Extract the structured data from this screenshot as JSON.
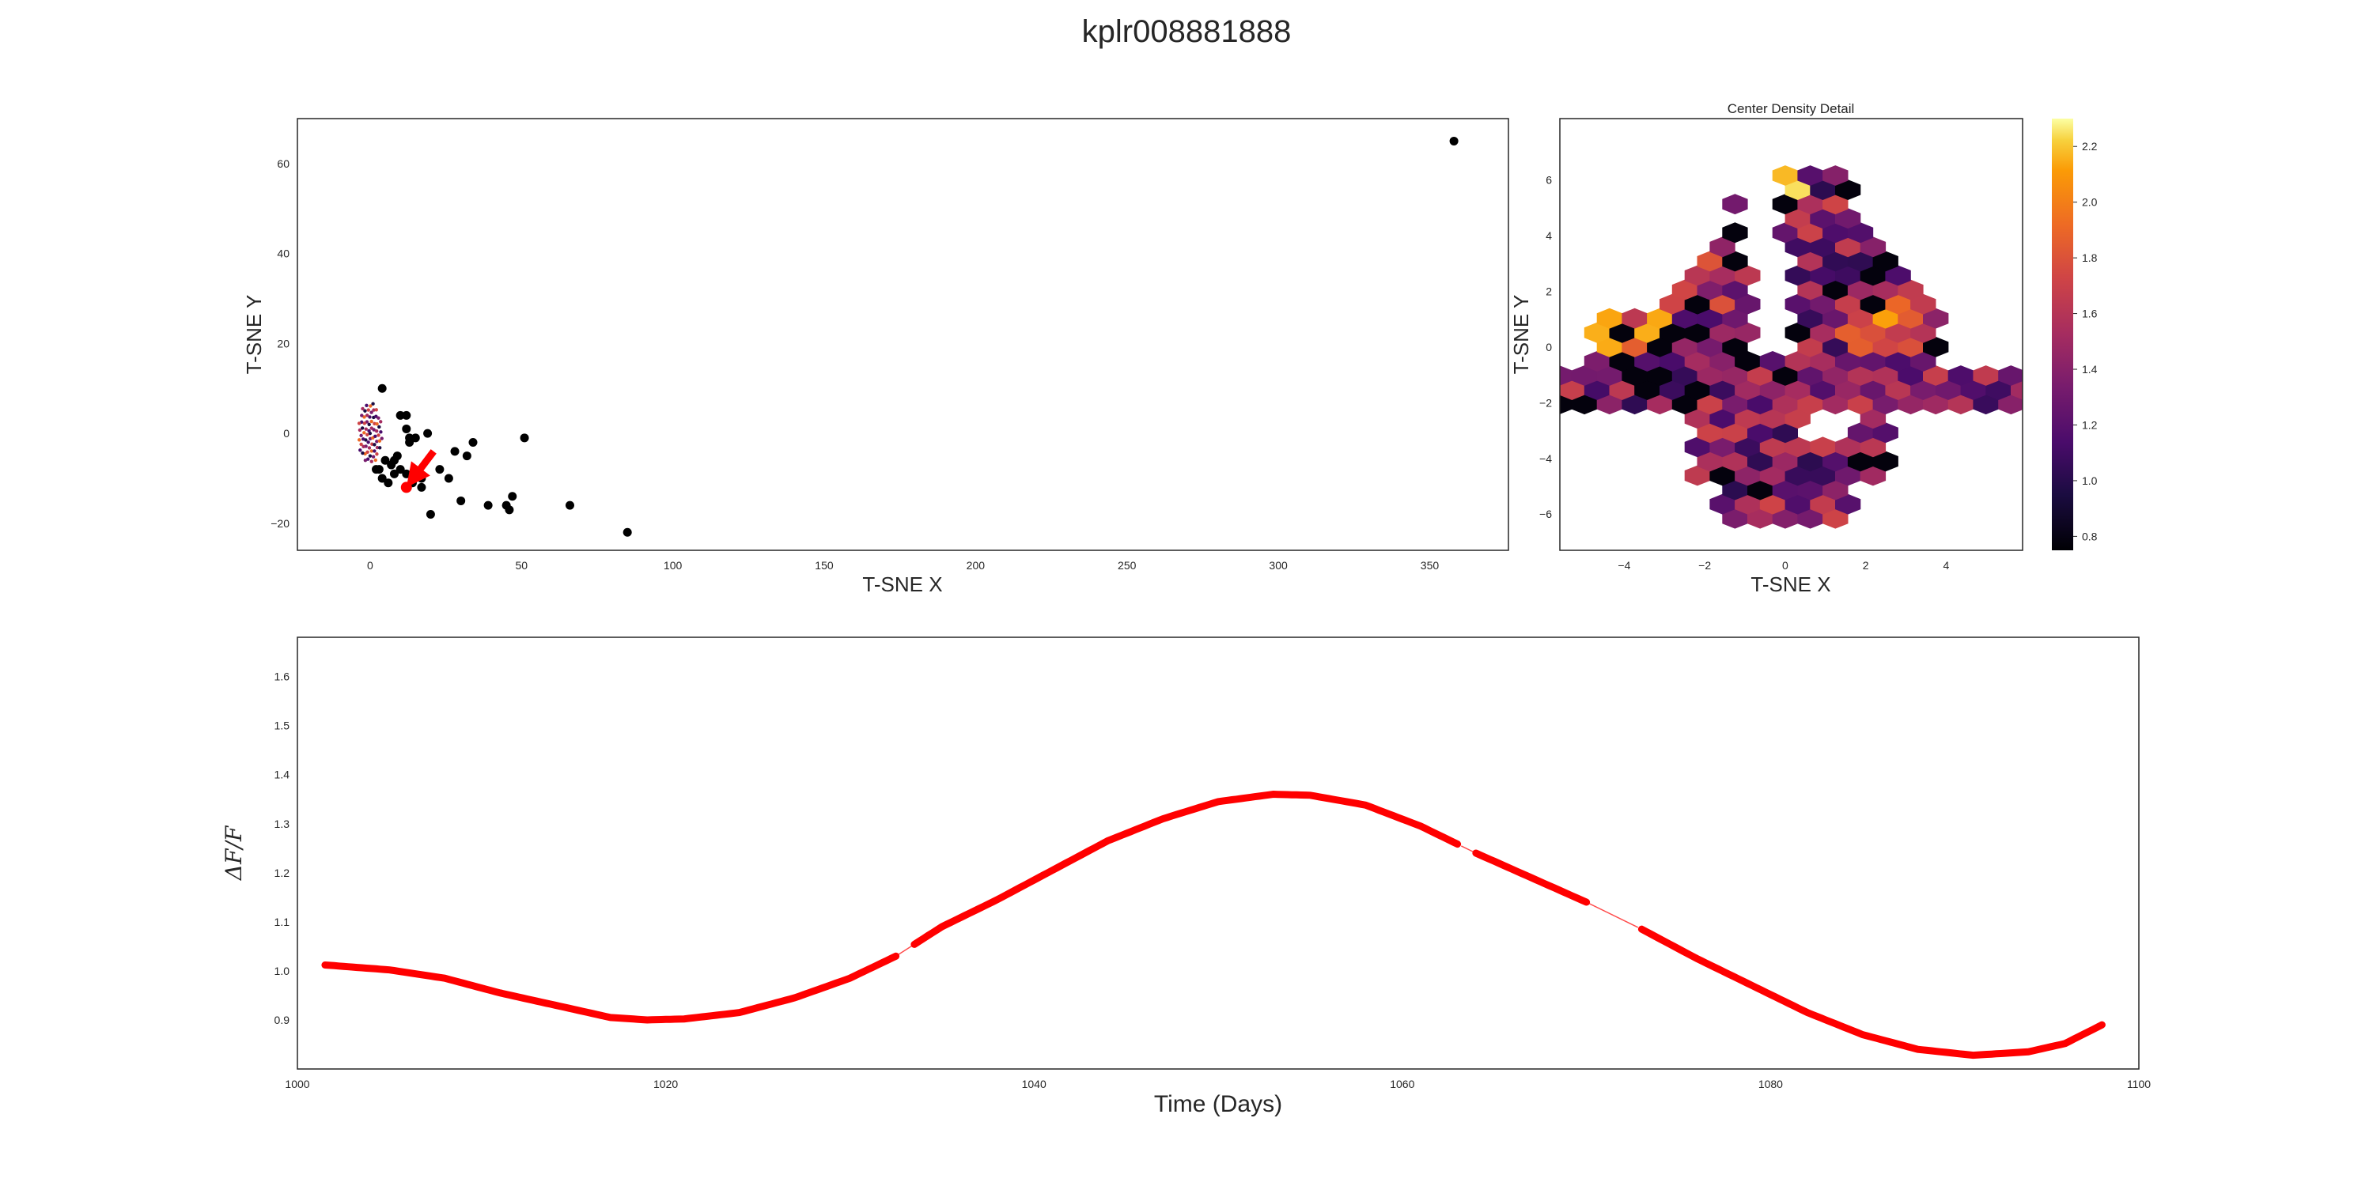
{
  "figure": {
    "title": "kplr008881888"
  },
  "chart_data": [
    {
      "type": "scatter",
      "xlabel": "T-SNE X",
      "ylabel": "T-SNE Y",
      "xlim": [
        -24,
        376
      ],
      "ylim": [
        -26,
        70
      ],
      "xticks": [
        0,
        50,
        100,
        150,
        200,
        250,
        300,
        350
      ],
      "yticks": [
        -20,
        0,
        20,
        40,
        60
      ],
      "grid": false,
      "series": [
        {
          "color": "#000000",
          "points": [
            [
              4,
              10
            ],
            [
              10,
              4
            ],
            [
              12,
              4
            ],
            [
              13,
              -1
            ],
            [
              13,
              -2
            ],
            [
              15,
              -1
            ],
            [
              12,
              1
            ],
            [
              19,
              0
            ],
            [
              9,
              -5
            ],
            [
              8,
              -6
            ],
            [
              7,
              -7
            ],
            [
              5,
              -6
            ],
            [
              2,
              -8
            ],
            [
              3,
              -8
            ],
            [
              4,
              -10
            ],
            [
              6,
              -11
            ],
            [
              8,
              -9
            ],
            [
              10,
              -8
            ],
            [
              12,
              -9
            ],
            [
              14,
              -11
            ],
            [
              17,
              -12
            ],
            [
              17,
              -10
            ],
            [
              23,
              -8
            ],
            [
              26,
              -10
            ],
            [
              28,
              -4
            ],
            [
              30,
              -15
            ],
            [
              32,
              -5
            ],
            [
              34,
              -2
            ],
            [
              39,
              -16
            ],
            [
              45,
              -16
            ],
            [
              46,
              -17
            ],
            [
              47,
              -14
            ],
            [
              51,
              -1
            ],
            [
              66,
              -16
            ],
            [
              85,
              -22
            ],
            [
              20,
              -18
            ],
            [
              358,
              65
            ]
          ]
        },
        {
          "color": "#ff0000",
          "points": [
            [
              12,
              -12
            ]
          ]
        }
      ],
      "annotations": [
        {
          "type": "arrow",
          "color": "#ff0000",
          "from": [
            21,
            -4
          ],
          "to": [
            12,
            -12
          ]
        }
      ]
    },
    {
      "type": "hexbin",
      "title": "Center Density Detail",
      "xlabel": "T-SNE X",
      "ylabel": "T-SNE Y",
      "xlim": [
        -5.6,
        5.9
      ],
      "ylim": [
        -7.3,
        8.2
      ],
      "xticks": [
        -4,
        -2,
        0,
        2,
        4
      ],
      "yticks": [
        -6,
        -4,
        -2,
        0,
        2,
        4,
        6
      ],
      "colormap": "inferno",
      "colorbar": {
        "min": 0.75,
        "max": 2.3,
        "ticks": [
          0.8,
          1.0,
          1.2,
          1.4,
          1.6,
          1.8,
          2.0,
          2.2
        ]
      }
    },
    {
      "type": "line",
      "xlabel": "Time (Days)",
      "ylabel": "ΔF/F",
      "xlim": [
        1000,
        1100
      ],
      "ylim": [
        0.8,
        1.68
      ],
      "xticks": [
        1000,
        1020,
        1040,
        1060,
        1080,
        1100
      ],
      "yticks": [
        0.9,
        1.0,
        1.1,
        1.2,
        1.3,
        1.4,
        1.5,
        1.6
      ],
      "series": [
        {
          "color": "#ff0000",
          "gaps": [
            [
              1032.5,
              1033.5
            ],
            [
              1063.2,
              1064.0
            ],
            [
              1070.0,
              1072.8
            ]
          ],
          "points": [
            [
              1001.5,
              1.012
            ],
            [
              1005,
              1.002
            ],
            [
              1008,
              0.985
            ],
            [
              1011,
              0.955
            ],
            [
              1014,
              0.93
            ],
            [
              1017,
              0.905
            ],
            [
              1019,
              0.9
            ],
            [
              1021,
              0.902
            ],
            [
              1024,
              0.915
            ],
            [
              1027,
              0.945
            ],
            [
              1030,
              0.985
            ],
            [
              1032.5,
              1.03
            ],
            [
              1035,
              1.09
            ],
            [
              1038,
              1.145
            ],
            [
              1041,
              1.205
            ],
            [
              1044,
              1.265
            ],
            [
              1047,
              1.31
            ],
            [
              1050,
              1.345
            ],
            [
              1053,
              1.36
            ],
            [
              1055,
              1.358
            ],
            [
              1058,
              1.338
            ],
            [
              1061,
              1.295
            ],
            [
              1064,
              1.24
            ],
            [
              1067,
              1.19
            ],
            [
              1070,
              1.14
            ],
            [
              1073,
              1.085
            ],
            [
              1076,
              1.025
            ],
            [
              1079,
              0.97
            ],
            [
              1082,
              0.915
            ],
            [
              1085,
              0.87
            ],
            [
              1088,
              0.84
            ],
            [
              1091,
              0.828
            ],
            [
              1094,
              0.835
            ],
            [
              1096,
              0.852
            ],
            [
              1098,
              0.89
            ]
          ]
        }
      ]
    }
  ]
}
